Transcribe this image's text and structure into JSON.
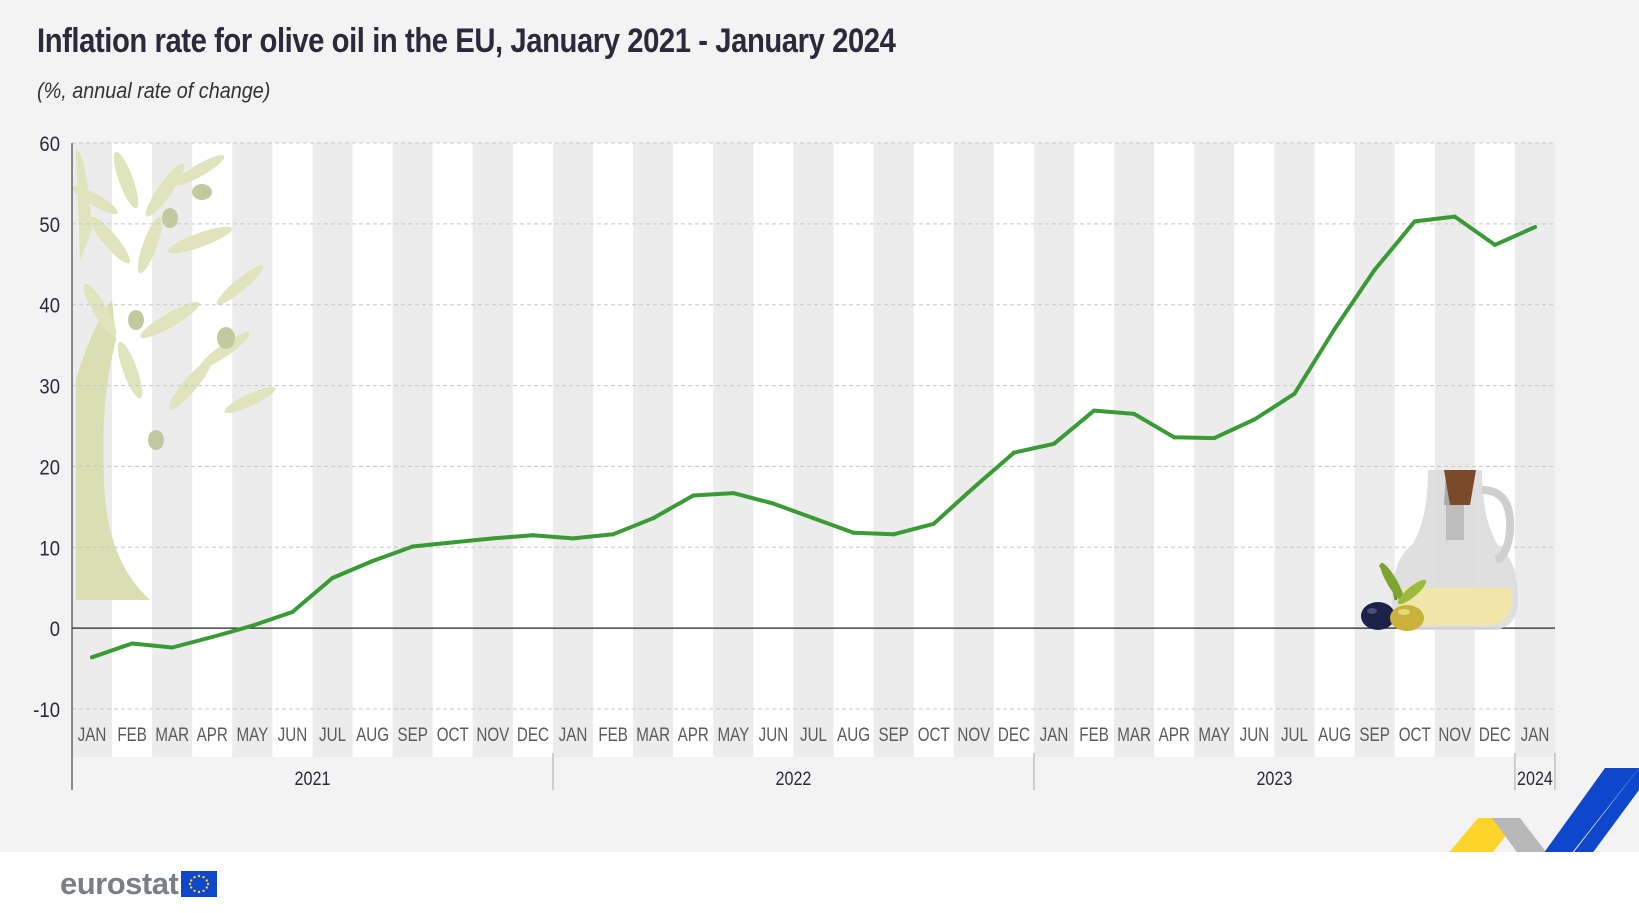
{
  "chart_data": {
    "type": "line",
    "title": "Inflation rate for olive oil in the EU, January 2021 - January 2024",
    "subtitle": "(%, annual rate of change)",
    "xlabel": "",
    "ylabel": "",
    "ylim": [
      -10,
      60
    ],
    "yticks": [
      -10,
      0,
      10,
      20,
      30,
      40,
      50,
      60
    ],
    "categories": [
      "JAN",
      "FEB",
      "MAR",
      "APR",
      "MAY",
      "JUN",
      "JUL",
      "AUG",
      "SEP",
      "OCT",
      "NOV",
      "DEC",
      "JAN",
      "FEB",
      "MAR",
      "APR",
      "MAY",
      "JUN",
      "JUL",
      "AUG",
      "SEP",
      "OCT",
      "NOV",
      "DEC",
      "JAN",
      "FEB",
      "MAR",
      "APR",
      "MAY",
      "JUN",
      "JUL",
      "AUG",
      "SEP",
      "OCT",
      "NOV",
      "DEC",
      "JAN"
    ],
    "years": [
      {
        "label": "2021",
        "start": 0,
        "count": 12
      },
      {
        "label": "2022",
        "start": 12,
        "count": 12
      },
      {
        "label": "2023",
        "start": 24,
        "count": 12
      },
      {
        "label": "2024",
        "start": 36,
        "count": 1
      }
    ],
    "series": [
      {
        "name": "Olive oil inflation rate",
        "color": "#3a9a35",
        "values": [
          -3.6,
          -1.9,
          -2.4,
          -1.1,
          0.3,
          2.0,
          6.2,
          8.3,
          10.1,
          10.6,
          11.1,
          11.5,
          11.1,
          11.6,
          13.6,
          16.4,
          16.7,
          15.4,
          13.6,
          11.8,
          11.6,
          12.9,
          17.4,
          21.7,
          22.8,
          26.9,
          26.5,
          23.6,
          23.5,
          25.8,
          29.0,
          37.0,
          44.3,
          50.3,
          50.9,
          47.4,
          49.6
        ]
      }
    ]
  },
  "footer": {
    "logo_text": "eurostat"
  },
  "colors": {
    "line": "#3a9a35",
    "stripe_white": "#ffffff",
    "stripe_grey": "#ececec",
    "text_dark": "#2a2a3a",
    "eurostat_blue": "#0e47cb",
    "eurostat_yellow": "#fdd42a"
  }
}
